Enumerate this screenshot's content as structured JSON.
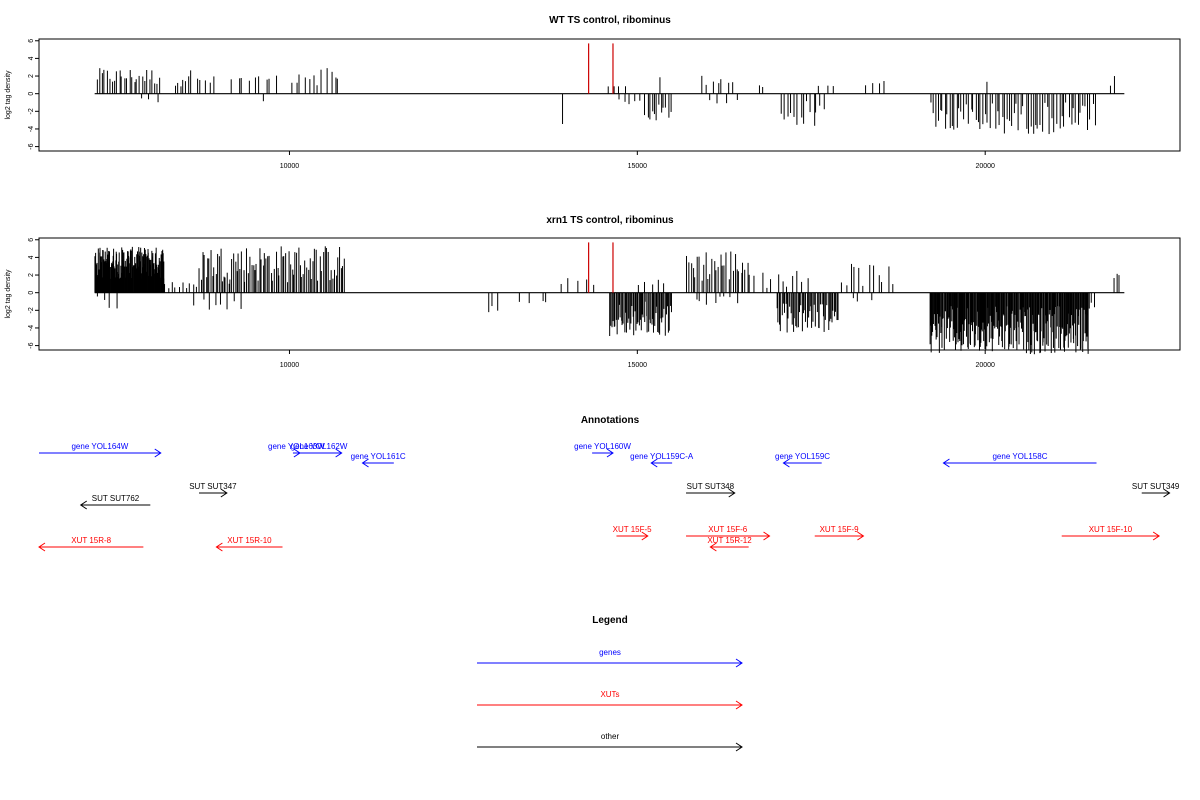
{
  "chart_data": [
    {
      "type": "bar",
      "title": "WT TS control, ribominus",
      "xlabel": "",
      "ylabel": "log2 tag density",
      "xlim": [
        6400,
        22800
      ],
      "ylim": [
        -6.5,
        6.2
      ],
      "xticks": [
        10000,
        15000,
        20000
      ],
      "yticks": [
        6,
        4,
        2,
        0,
        -2,
        -4,
        -6
      ],
      "baseline": {
        "x": [
          7200,
          22000
        ]
      },
      "highlight_bars": [
        {
          "x": 14300,
          "y": 5.7
        },
        {
          "x": 14650,
          "y": 5.7
        }
      ],
      "clusters": [
        {
          "x": [
            7220,
            8150
          ],
          "ymin": 0.8,
          "ymax": 2.9,
          "n": 26,
          "dir": 1
        },
        {
          "x": [
            7800,
            8200
          ],
          "ymin": 0.3,
          "ymax": 1.0,
          "n": 3,
          "dir": -1
        },
        {
          "x": [
            8350,
            8600
          ],
          "ymin": 0.8,
          "ymax": 2.9,
          "n": 7,
          "dir": 1
        },
        {
          "x": [
            8650,
            8950
          ],
          "ymin": 0.8,
          "ymax": 2.0,
          "n": 5,
          "dir": 1
        },
        {
          "x": [
            9150,
            9850
          ],
          "ymin": 0.8,
          "ymax": 2.2,
          "n": 9,
          "dir": 1
        },
        {
          "x": [
            9600,
            9650
          ],
          "ymin": 0.6,
          "ymax": 1.0,
          "n": 1,
          "dir": -1
        },
        {
          "x": [
            10000,
            10750
          ],
          "ymin": 0.9,
          "ymax": 3.3,
          "n": 12,
          "dir": 1
        },
        {
          "x": [
            14550,
            14850
          ],
          "ymin": 0.4,
          "ymax": 1.0,
          "n": 4,
          "dir": 1
        },
        {
          "x": [
            13900,
            13950
          ],
          "ymin": 3.4,
          "ymax": 3.6,
          "n": 1,
          "dir": -1
        },
        {
          "x": [
            14700,
            15100
          ],
          "ymin": 0.3,
          "ymax": 1.5,
          "n": 5,
          "dir": -1
        },
        {
          "x": [
            15100,
            15500
          ],
          "ymin": 1.2,
          "ymax": 3.2,
          "n": 12,
          "dir": -1
        },
        {
          "x": [
            15300,
            15350
          ],
          "ymin": 1.8,
          "ymax": 2.0,
          "n": 1,
          "dir": 1
        },
        {
          "x": [
            15900,
            16400
          ],
          "ymin": 0.8,
          "ymax": 2.1,
          "n": 7,
          "dir": 1
        },
        {
          "x": [
            15950,
            16500
          ],
          "ymin": 0.4,
          "ymax": 1.3,
          "n": 4,
          "dir": -1
        },
        {
          "x": [
            16750,
            16850
          ],
          "ymin": 0.7,
          "ymax": 1.0,
          "n": 2,
          "dir": 1
        },
        {
          "x": [
            17050,
            17700
          ],
          "ymin": 0.6,
          "ymax": 3.7,
          "n": 14,
          "dir": -1
        },
        {
          "x": [
            17500,
            17900
          ],
          "ymin": 0.5,
          "ymax": 1.0,
          "n": 3,
          "dir": 1
        },
        {
          "x": [
            18200,
            18650
          ],
          "ymin": 0.6,
          "ymax": 1.5,
          "n": 4,
          "dir": 1
        },
        {
          "x": [
            19200,
            21600
          ],
          "ymin": 0.8,
          "ymax": 4.6,
          "n": 70,
          "dir": -1
        },
        {
          "x": [
            20000,
            20050
          ],
          "ymin": 1.2,
          "ymax": 1.5,
          "n": 1,
          "dir": 1
        },
        {
          "x": [
            21800,
            21900
          ],
          "ymin": 0.5,
          "ymax": 2.5,
          "n": 2,
          "dir": 1
        }
      ]
    },
    {
      "type": "bar",
      "title": "xrn1 TS control, ribominus",
      "xlabel": "",
      "ylabel": "log2 tag density",
      "xlim": [
        6400,
        22800
      ],
      "ylim": [
        -6.5,
        6.2
      ],
      "xticks": [
        10000,
        15000,
        20000
      ],
      "yticks": [
        6,
        4,
        2,
        0,
        -2,
        -4,
        -6
      ],
      "baseline": {
        "x": [
          7200,
          22000
        ]
      },
      "highlight_bars": [
        {
          "x": 14300,
          "y": 5.7
        },
        {
          "x": 14650,
          "y": 5.7
        }
      ],
      "clusters": [
        {
          "x": [
            7200,
            8200
          ],
          "ymin": 1.5,
          "ymax": 5.2,
          "n": 160,
          "dir": 1
        },
        {
          "x": [
            7200,
            7600
          ],
          "ymin": 0.3,
          "ymax": 2.0,
          "n": 4,
          "dir": -1
        },
        {
          "x": [
            8200,
            8700
          ],
          "ymin": 0.2,
          "ymax": 1.5,
          "n": 10,
          "dir": 1
        },
        {
          "x": [
            8600,
            9400
          ],
          "ymin": 0.4,
          "ymax": 2.0,
          "n": 8,
          "dir": -1
        },
        {
          "x": [
            8700,
            10800
          ],
          "ymin": 1.0,
          "ymax": 5.4,
          "n": 90,
          "dir": 1
        },
        {
          "x": [
            12800,
            13050
          ],
          "ymin": 1.2,
          "ymax": 2.4,
          "n": 3,
          "dir": -1
        },
        {
          "x": [
            13300,
            13800
          ],
          "ymin": 0.4,
          "ymax": 1.2,
          "n": 4,
          "dir": -1
        },
        {
          "x": [
            13800,
            14500
          ],
          "ymin": 0.8,
          "ymax": 2.0,
          "n": 5,
          "dir": 1
        },
        {
          "x": [
            14600,
            15500
          ],
          "ymin": 1.0,
          "ymax": 5.0,
          "n": 60,
          "dir": -1
        },
        {
          "x": [
            15000,
            15400
          ],
          "ymin": 0.6,
          "ymax": 1.5,
          "n": 5,
          "dir": 1
        },
        {
          "x": [
            15700,
            16600
          ],
          "ymin": 1.0,
          "ymax": 5.0,
          "n": 30,
          "dir": 1
        },
        {
          "x": [
            15800,
            16500
          ],
          "ymin": 0.3,
          "ymax": 1.4,
          "n": 8,
          "dir": -1
        },
        {
          "x": [
            16600,
            17500
          ],
          "ymin": 0.5,
          "ymax": 2.6,
          "n": 12,
          "dir": 1
        },
        {
          "x": [
            17000,
            17900
          ],
          "ymin": 1.2,
          "ymax": 4.6,
          "n": 50,
          "dir": -1
        },
        {
          "x": [
            17900,
            18700
          ],
          "ymin": 0.6,
          "ymax": 3.3,
          "n": 12,
          "dir": 1
        },
        {
          "x": [
            18000,
            18400
          ],
          "ymin": 0.3,
          "ymax": 1.0,
          "n": 3,
          "dir": -1
        },
        {
          "x": [
            19200,
            21500
          ],
          "ymin": 1.5,
          "ymax": 7.0,
          "n": 220,
          "dir": -1
        },
        {
          "x": [
            21400,
            21600
          ],
          "ymin": 0.5,
          "ymax": 3.2,
          "n": 4,
          "dir": -1
        },
        {
          "x": [
            21850,
            21950
          ],
          "ymin": 1.5,
          "ymax": 2.2,
          "n": 3,
          "dir": 1
        }
      ]
    }
  ],
  "annotations": {
    "title": "Annotations",
    "xlim": [
      6400,
      22800
    ],
    "colors": {
      "genes": "#0000ff",
      "xuts": "#ff0000",
      "other": "#000000"
    },
    "features": [
      {
        "label": "gene YOL164W",
        "cat": "genes",
        "start": 6400,
        "end": 8150,
        "dir": 1,
        "row": 0
      },
      {
        "label": "gene YOL163W",
        "cat": "genes",
        "start": 10050,
        "end": 10150,
        "dir": 1,
        "row": 0
      },
      {
        "label": "gene YOL162W",
        "cat": "genes",
        "start": 10100,
        "end": 10750,
        "dir": 1,
        "row": 0
      },
      {
        "label": "gene YOL161C",
        "cat": "genes",
        "start": 11050,
        "end": 11500,
        "dir": -1,
        "row": 1
      },
      {
        "label": "gene YOL160W",
        "cat": "genes",
        "start": 14350,
        "end": 14650,
        "dir": 1,
        "row": 0
      },
      {
        "label": "gene YOL159C-A",
        "cat": "genes",
        "start": 15200,
        "end": 15500,
        "dir": -1,
        "row": 1
      },
      {
        "label": "gene YOL159C",
        "cat": "genes",
        "start": 17100,
        "end": 17650,
        "dir": -1,
        "row": 1
      },
      {
        "label": "gene YOL158C",
        "cat": "genes",
        "start": 19400,
        "end": 21600,
        "dir": -1,
        "row": 1
      },
      {
        "label": "SUT SUT762",
        "cat": "other",
        "start": 7000,
        "end": 8000,
        "dir": -1,
        "row": 4
      },
      {
        "label": "SUT SUT347",
        "cat": "other",
        "start": 8700,
        "end": 9100,
        "dir": 1,
        "row": 3
      },
      {
        "label": "SUT SUT348",
        "cat": "other",
        "start": 15700,
        "end": 16400,
        "dir": 1,
        "row": 3
      },
      {
        "label": "SUT SUT349",
        "cat": "other",
        "start": 22250,
        "end": 22650,
        "dir": 1,
        "row": 3
      },
      {
        "label": "XUT 15R-8",
        "cat": "xuts",
        "start": 6400,
        "end": 7900,
        "dir": -1,
        "row": 7
      },
      {
        "label": "XUT 15R-10",
        "cat": "xuts",
        "start": 8950,
        "end": 9900,
        "dir": -1,
        "row": 7
      },
      {
        "label": "XUT 15F-5",
        "cat": "xuts",
        "start": 14700,
        "end": 15150,
        "dir": 1,
        "row": 6
      },
      {
        "label": "XUT 15F-6",
        "cat": "xuts",
        "start": 15700,
        "end": 16900,
        "dir": 1,
        "row": 6
      },
      {
        "label": "XUT 15R-12",
        "cat": "xuts",
        "start": 16050,
        "end": 16600,
        "dir": -1,
        "row": 7
      },
      {
        "label": "XUT 15F-9",
        "cat": "xuts",
        "start": 17550,
        "end": 18250,
        "dir": 1,
        "row": 6
      },
      {
        "label": "XUT 15F-10",
        "cat": "xuts",
        "start": 21100,
        "end": 22500,
        "dir": 1,
        "row": 6
      }
    ]
  },
  "legend": {
    "title": "Legend",
    "items": [
      {
        "label": "genes",
        "color": "#0000ff"
      },
      {
        "label": "XUTs",
        "color": "#ff0000"
      },
      {
        "label": "other",
        "color": "#000000"
      }
    ]
  }
}
